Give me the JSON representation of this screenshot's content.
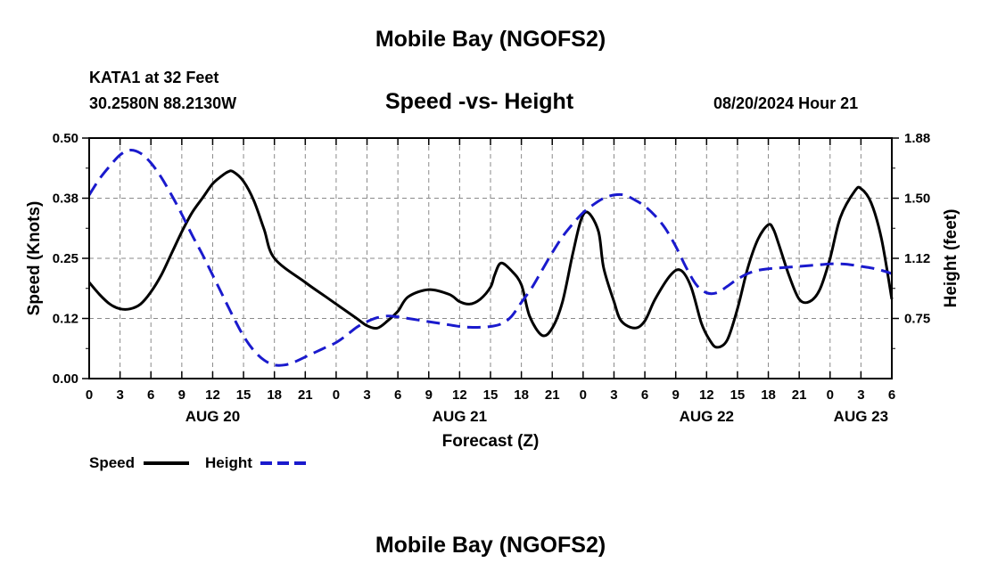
{
  "header": {
    "title": "Mobile Bay (NGOFS2)",
    "station": "KATA1 at 32 Feet",
    "coords": "30.2580N  88.2130W",
    "datetime": "08/20/2024 Hour 21"
  },
  "footer": {
    "title": "Mobile Bay (NGOFS2)"
  },
  "chart_data": {
    "type": "line",
    "title": "Speed -vs- Height",
    "xlabel": "Forecast (Z)",
    "ylabel_left": "Speed (Knots)",
    "ylabel_right": "Height (feet)",
    "x_unit": "hours since 2024-08-20 00Z",
    "xlim": [
      0,
      78
    ],
    "ylim_left": [
      0,
      0.5
    ],
    "ylim_right": [
      0.375,
      1.875
    ],
    "grid": true,
    "x_ticks": [
      {
        "x": 0,
        "label": "0"
      },
      {
        "x": 3,
        "label": "3"
      },
      {
        "x": 6,
        "label": "6"
      },
      {
        "x": 9,
        "label": "9"
      },
      {
        "x": 12,
        "label": "12"
      },
      {
        "x": 15,
        "label": "15"
      },
      {
        "x": 18,
        "label": "18"
      },
      {
        "x": 21,
        "label": "21"
      },
      {
        "x": 24,
        "label": "0"
      },
      {
        "x": 27,
        "label": "3"
      },
      {
        "x": 30,
        "label": "6"
      },
      {
        "x": 33,
        "label": "9"
      },
      {
        "x": 36,
        "label": "12"
      },
      {
        "x": 39,
        "label": "15"
      },
      {
        "x": 42,
        "label": "18"
      },
      {
        "x": 45,
        "label": "21"
      },
      {
        "x": 48,
        "label": "0"
      },
      {
        "x": 51,
        "label": "3"
      },
      {
        "x": 54,
        "label": "6"
      },
      {
        "x": 57,
        "label": "9"
      },
      {
        "x": 60,
        "label": "12"
      },
      {
        "x": 63,
        "label": "15"
      },
      {
        "x": 66,
        "label": "18"
      },
      {
        "x": 69,
        "label": "21"
      },
      {
        "x": 72,
        "label": "0"
      },
      {
        "x": 75,
        "label": "3"
      },
      {
        "x": 78,
        "label": "6"
      }
    ],
    "date_labels": [
      {
        "x": 12,
        "label": "AUG 20"
      },
      {
        "x": 36,
        "label": "AUG 21"
      },
      {
        "x": 60,
        "label": "AUG 22"
      },
      {
        "x": 75,
        "label": "AUG 23"
      }
    ],
    "y_ticks_left": [
      {
        "value": 0.0,
        "label": "0.00"
      },
      {
        "value": 0.125,
        "label": "0.12"
      },
      {
        "value": 0.25,
        "label": "0.25"
      },
      {
        "value": 0.375,
        "label": "0.38"
      },
      {
        "value": 0.5,
        "label": "0.50"
      }
    ],
    "y_ticks_right": [
      {
        "value": 0.75,
        "label": "0.75"
      },
      {
        "value": 1.125,
        "label": "1.12"
      },
      {
        "value": 1.5,
        "label": "1.50"
      },
      {
        "value": 1.875,
        "label": "1.88"
      }
    ],
    "series": [
      {
        "name": "Speed",
        "axis": "left",
        "color": "#000000",
        "style": "solid",
        "x": [
          0,
          1,
          2,
          3,
          4,
          5,
          6,
          7,
          8,
          9,
          10,
          11,
          12,
          12.8,
          13.5,
          14,
          15,
          16,
          17,
          18,
          21,
          23,
          24,
          26,
          27,
          28,
          29,
          30,
          31,
          33,
          35,
          36,
          37,
          38,
          39,
          39.4,
          40,
          41,
          42,
          42.8,
          44,
          45,
          46,
          47,
          47.8,
          48.5,
          49.5,
          50,
          51,
          51.7,
          53,
          54,
          55,
          56.5,
          57.5,
          58.5,
          59.5,
          60.3,
          61,
          62,
          63,
          64,
          65,
          66,
          66.5,
          67,
          68,
          69,
          70,
          71,
          72,
          73,
          74.4,
          75,
          76,
          77,
          78
        ],
        "values": [
          0.2,
          0.175,
          0.155,
          0.145,
          0.145,
          0.155,
          0.18,
          0.215,
          0.26,
          0.305,
          0.345,
          0.375,
          0.405,
          0.42,
          0.43,
          0.43,
          0.41,
          0.37,
          0.31,
          0.25,
          0.2,
          0.17,
          0.155,
          0.125,
          0.11,
          0.105,
          0.12,
          0.14,
          0.17,
          0.185,
          0.175,
          0.16,
          0.155,
          0.165,
          0.19,
          0.215,
          0.24,
          0.225,
          0.195,
          0.13,
          0.09,
          0.105,
          0.16,
          0.26,
          0.33,
          0.345,
          0.305,
          0.23,
          0.16,
          0.12,
          0.105,
          0.12,
          0.165,
          0.215,
          0.225,
          0.19,
          0.115,
          0.08,
          0.065,
          0.08,
          0.145,
          0.23,
          0.29,
          0.32,
          0.31,
          0.28,
          0.215,
          0.165,
          0.16,
          0.185,
          0.25,
          0.335,
          0.39,
          0.395,
          0.365,
          0.29,
          0.165
        ]
      },
      {
        "name": "Height",
        "axis": "right",
        "color": "#1a1acd",
        "style": "dashed",
        "x": [
          0,
          1,
          2,
          3,
          4,
          5,
          6,
          7,
          8,
          9,
          10,
          11,
          12,
          13,
          14,
          15,
          16,
          17,
          18,
          19,
          20,
          21,
          22,
          23,
          24,
          25,
          26,
          27,
          28,
          29,
          30,
          31,
          32,
          33,
          34,
          35,
          36,
          37,
          38,
          39,
          40,
          41,
          42,
          43,
          44,
          45,
          46,
          47,
          48,
          49,
          50,
          51,
          52,
          53,
          54,
          55,
          56,
          57,
          58,
          59,
          60,
          61,
          62,
          63,
          64,
          65,
          66,
          67,
          68,
          69,
          70,
          71,
          72,
          73,
          74,
          75,
          76,
          77,
          78
        ],
        "values": [
          1.52,
          1.62,
          1.7,
          1.77,
          1.8,
          1.78,
          1.72,
          1.63,
          1.52,
          1.4,
          1.27,
          1.15,
          1.02,
          0.89,
          0.76,
          0.64,
          0.55,
          0.49,
          0.46,
          0.46,
          0.48,
          0.51,
          0.54,
          0.57,
          0.6,
          0.645,
          0.695,
          0.73,
          0.755,
          0.765,
          0.76,
          0.75,
          0.74,
          0.73,
          0.72,
          0.71,
          0.7,
          0.695,
          0.695,
          0.7,
          0.715,
          0.76,
          0.85,
          0.94,
          1.05,
          1.16,
          1.26,
          1.34,
          1.41,
          1.46,
          1.5,
          1.52,
          1.52,
          1.49,
          1.45,
          1.39,
          1.31,
          1.2,
          1.07,
          0.96,
          0.91,
          0.91,
          0.95,
          0.995,
          1.03,
          1.05,
          1.06,
          1.065,
          1.07,
          1.075,
          1.08,
          1.085,
          1.09,
          1.09,
          1.085,
          1.075,
          1.065,
          1.05,
          1.03
        ]
      }
    ],
    "legend": [
      {
        "label": "Speed",
        "color": "#000000",
        "style": "solid"
      },
      {
        "label": "Height",
        "color": "#1a1acd",
        "style": "dashed"
      }
    ]
  }
}
